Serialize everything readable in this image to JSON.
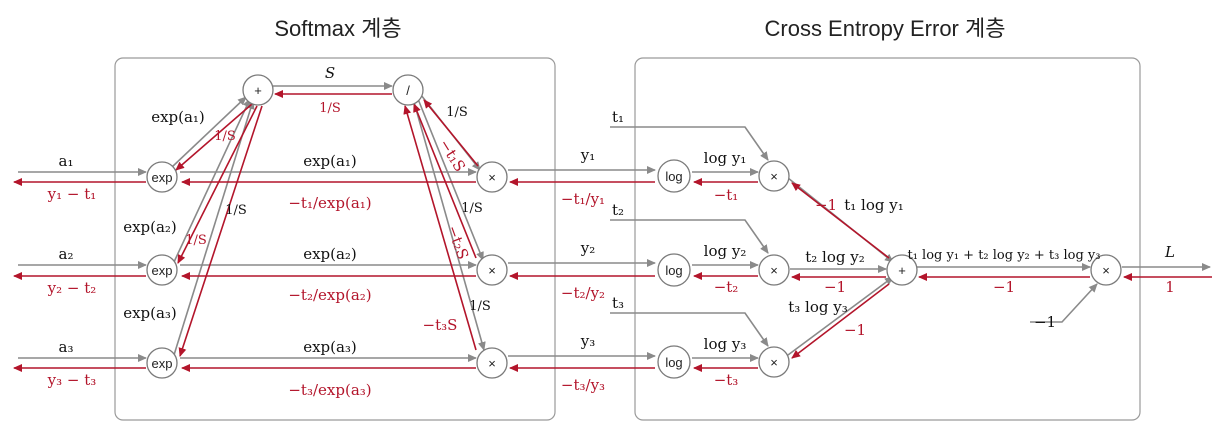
{
  "titles": {
    "softmax": "Softmax 계층",
    "cee": "Cross Entropy Error 계층"
  },
  "colors": {
    "forward": "#8a8a8a",
    "backward": "#b3152b"
  },
  "nodes": {
    "exp": "exp",
    "plus": "+",
    "div": "/",
    "times": "×",
    "log": "log"
  },
  "forward": {
    "a1": "a₁",
    "a2": "a₂",
    "a3": "a₃",
    "exp_a1_in": "exp(a₁)",
    "exp_a2_in": "exp(a₂)",
    "exp_a3_in": "exp(a₃)",
    "exp_a1": "exp(a₁)",
    "exp_a2": "exp(a₂)",
    "exp_a3": "exp(a₃)",
    "S": "S",
    "inv_S": "1/S",
    "y1": "y₁",
    "y2": "y₂",
    "y3": "y₃",
    "t1": "t₁",
    "t2": "t₂",
    "t3": "t₃",
    "log_y1": "log y₁",
    "log_y2": "log y₂",
    "log_y3": "log y₃",
    "t1_log_y1": "t₁ log y₁",
    "t2_log_y2": "t₂ log y₂",
    "t3_log_y3": "t₃ log y₃",
    "sum": "t₁ log y₁ + t₂ log y₂ + t₃ log y₃",
    "minus_one": "−1",
    "L": "L"
  },
  "backward": {
    "y1_t1": "y₁ − t₁",
    "y2_t2": "y₂ − t₂",
    "y3_t3": "y₃ − t₃",
    "d_inv_S": "1/S",
    "d_S1": "1/S",
    "d_S2": "1/S",
    "d_S3": "1/S",
    "neg_t1S": "−t₁S",
    "neg_t2S": "−t₂S",
    "neg_t3S": "−t₃S",
    "neg_t1": "−t₁",
    "neg_t2": "−t₂",
    "neg_t3": "−t₃",
    "t1_over_y1": "−t₁/y₁",
    "t2_over_y2": "−t₂/y₂",
    "t3_over_y3": "−t₃/y₃",
    "t1_over_exp": "−t₁/exp(a₁)",
    "t2_over_exp": "−t₂/exp(a₂)",
    "t3_over_exp": "−t₃/exp(a₃)",
    "m1_a": "−1",
    "m1_b": "−1",
    "m1_c": "−1",
    "m1_d": "−1",
    "one": "1"
  }
}
